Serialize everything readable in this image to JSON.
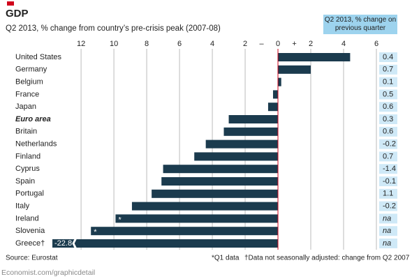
{
  "chart_data": {
    "type": "barh",
    "title": "GDP",
    "subtitle": "Q2 2013, % change from country’s pre-crisis peak (2007-08)",
    "side_header": "Q2 2013, % change on previous quarter",
    "categories": [
      "United States",
      "Germany",
      "Belgium",
      "France",
      "Japan",
      "Euro area",
      "Britain",
      "Netherlands",
      "Finland",
      "Cyprus",
      "Spain",
      "Portugal",
      "Italy",
      "Ireland",
      "Slovenia",
      "Greece†"
    ],
    "highlight_index": 5,
    "values": [
      4.4,
      2.0,
      0.2,
      -0.3,
      -0.6,
      -3.0,
      -3.3,
      -4.4,
      -5.1,
      -7.0,
      -7.1,
      -7.7,
      -8.9,
      -9.9,
      -11.4,
      -22.8
    ],
    "value_labels": [
      null,
      null,
      null,
      null,
      null,
      null,
      null,
      null,
      null,
      null,
      null,
      null,
      null,
      null,
      null,
      "-22.8"
    ],
    "markers": [
      null,
      null,
      null,
      null,
      null,
      null,
      null,
      null,
      null,
      null,
      null,
      null,
      null,
      "*",
      "*",
      null
    ],
    "side_values": [
      "0.4",
      "0.7",
      "0.1",
      "0.5",
      "0.6",
      "0.3",
      "0.6",
      "-0.2",
      "0.7",
      "-1.4",
      "-0.1",
      "1.1",
      "-0.2",
      "na",
      "na",
      "na"
    ],
    "color": "#1b3b4e",
    "xlim": [
      -13.75,
      6
    ],
    "xticks": [
      {
        "value": -12,
        "label": "12"
      },
      {
        "value": -10,
        "label": "10"
      },
      {
        "value": -8,
        "label": "8"
      },
      {
        "value": -6,
        "label": "6"
      },
      {
        "value": -4,
        "label": "4"
      },
      {
        "value": -2,
        "label": "2"
      },
      0,
      2,
      4,
      6
    ],
    "sign_labels": [
      "–",
      "+"
    ],
    "grid": true,
    "source": "Source: Eurostat",
    "footnotes": [
      "*Q1 data",
      "†Data not seasonally adjusted: change from Q2 2007"
    ],
    "credit": "Economist.com/graphicdetail"
  }
}
